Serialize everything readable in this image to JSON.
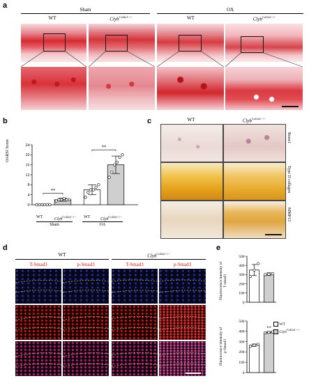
{
  "panel_a": {
    "label": "a",
    "group_sham": "Sham",
    "group_oa": "OA",
    "col_wt": "WT",
    "col_ko_gene": "Clyb",
    "col_ko_sup": "Col2a1−/−",
    "colors": {
      "safranin": "#d8242a",
      "bg_pink": "#f2c9cc"
    }
  },
  "panel_b": {
    "label": "b",
    "ylabel": "OARSI Score",
    "sig_sham": "**",
    "sig_oa": "**",
    "group_sham": "Sham",
    "group_oa": "OA",
    "tick_wt_sham": "WT",
    "tick_wt_oa": "WT",
    "tick_ko_gene": "Clyb",
    "tick_ko_sup": "Col2a1−/−"
  },
  "panel_c": {
    "label": "c",
    "col_wt": "WT",
    "col_ko_gene": "Clyb",
    "col_ko_sup": "Col2a1−/−",
    "row1": "Runx1",
    "row2": "Type II collagen",
    "row3": "MMP13"
  },
  "panel_d": {
    "label": "d",
    "group_wt": "WT",
    "group_ko_gene": "Clyb",
    "group_ko_sup": "Col2a1−/−",
    "ch1": "T-Smad3",
    "ch2": "p-Smad3",
    "ch3": "T-Smad3",
    "ch4": "p-Smad3"
  },
  "panel_e": {
    "label": "e",
    "ylabel_top_l1": "Fluorescence intensity of",
    "ylabel_top_l2": "T-smad3",
    "ylabel_bot_l1": "Fluorescence intensity of",
    "ylabel_bot_l2": "p-Smad3",
    "sig": "**",
    "legend_wt": "WT",
    "legend_ko_gene": "Clyb",
    "legend_ko_sup": "Col2a1−/−"
  },
  "chart_data": [
    {
      "type": "bar",
      "panel": "b",
      "ylabel": "OARSI Score",
      "ylim": [
        0,
        24
      ],
      "yticks": [
        0,
        4,
        8,
        12,
        16,
        20,
        24
      ],
      "categories": [
        "Sham WT",
        "Sham Clyb",
        "OA WT",
        "OA Clyb"
      ],
      "values": [
        0,
        2,
        6,
        16
      ],
      "errors": [
        0,
        0.6,
        2,
        3.5
      ],
      "points": [
        [
          0,
          0,
          0,
          0,
          0,
          0
        ],
        [
          1.5,
          2,
          2,
          2.5,
          2,
          2
        ],
        [
          3,
          5,
          6,
          6,
          7,
          8
        ],
        [
          11,
          13,
          16,
          17,
          19,
          20
        ]
      ],
      "colors": [
        "#ffffff",
        "#cfcfcf",
        "#ffffff",
        "#cfcfcf"
      ]
    },
    {
      "type": "bar",
      "panel": "e-top",
      "ylabel": "Fluorescence intensity of T-smad3",
      "ylim": [
        0,
        500
      ],
      "yticks": [
        0,
        100,
        200,
        300,
        400,
        500
      ],
      "categories": [
        "WT",
        "Clyb"
      ],
      "values": [
        350,
        305
      ],
      "errors": [
        60,
        15
      ],
      "points": [
        [
          280,
          350,
          420
        ],
        [
          300,
          305,
          310
        ]
      ],
      "colors": [
        "#ffffff",
        "#cfcfcf"
      ]
    },
    {
      "type": "bar",
      "panel": "e-bottom",
      "ylabel": "Fluorescence intensity of p-Smad3",
      "ylim": [
        0,
        500
      ],
      "yticks": [
        0,
        100,
        200,
        300,
        400,
        500
      ],
      "categories": [
        "WT",
        "Clyb"
      ],
      "values": [
        265,
        390
      ],
      "errors": [
        12,
        8
      ],
      "points": [
        [
          255,
          265,
          275
        ],
        [
          385,
          390,
          395
        ]
      ],
      "colors": [
        "#ffffff",
        "#cfcfcf"
      ]
    }
  ]
}
